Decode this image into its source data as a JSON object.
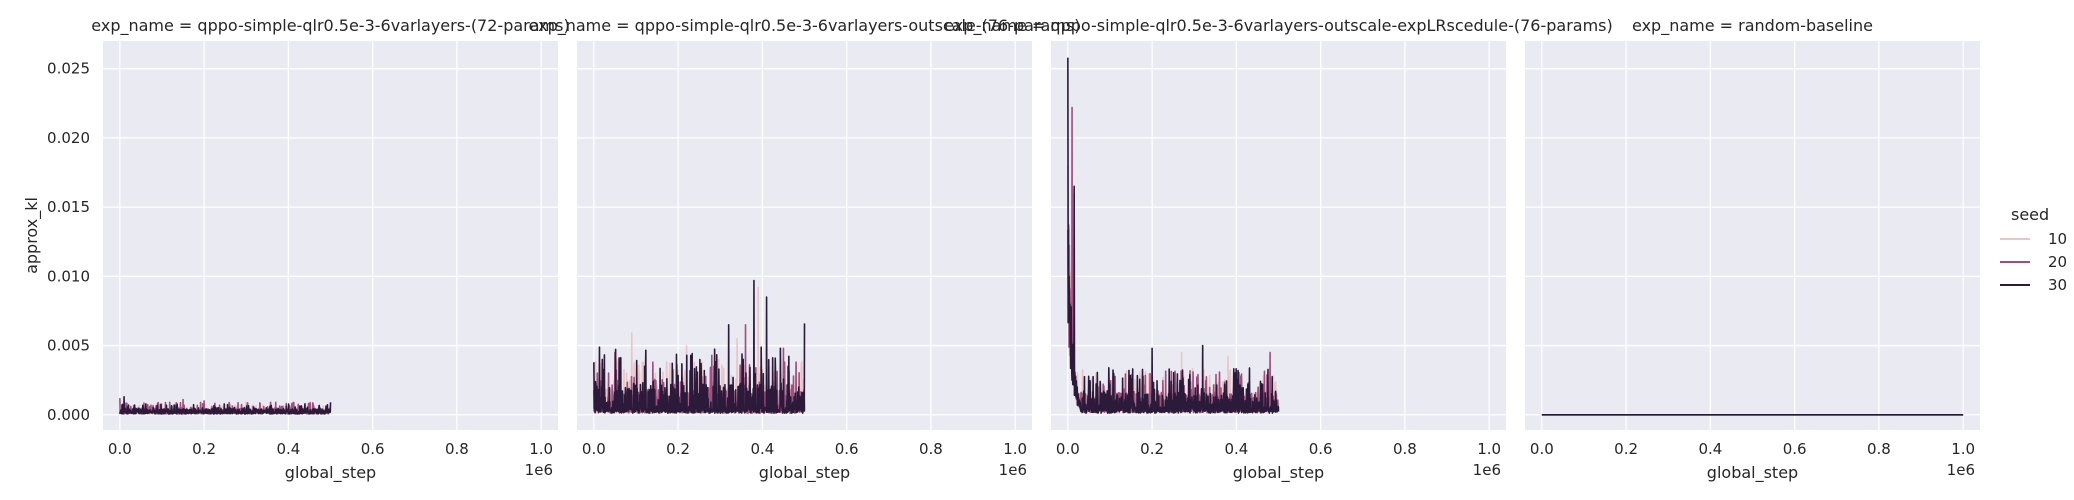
{
  "figure": {
    "legend": {
      "title": "seed",
      "placement": "right-center"
    }
  },
  "chart_data": [
    {
      "type": "line",
      "title": "exp_name = qppo-simple-qlr0.5e-3-6varlayers-(72-params)",
      "xlabel": "global_step",
      "ylabel": "approx_kl",
      "x_offset_label": "1e6",
      "xlim": [
        -0.04,
        1.04
      ],
      "ylim": [
        -0.0011,
        0.027
      ],
      "xticks": [
        0.0,
        0.2,
        0.4,
        0.6,
        0.8,
        1.0
      ],
      "xtick_labels": [
        "0.0",
        "0.2",
        "0.4",
        "0.6",
        "0.8",
        "1.0"
      ],
      "yticks": [
        0.0,
        0.005,
        0.01,
        0.015,
        0.02,
        0.025
      ],
      "ytick_labels": [
        "0.000",
        "0.005",
        "0.010",
        "0.015",
        "0.020",
        "0.025"
      ],
      "grid": true,
      "x_range": [
        0.0,
        0.5
      ],
      "series": [
        {
          "name": "10",
          "color": "#ebc5c3",
          "typical": 0.0002,
          "amplitude": 0.0005,
          "peaks": [
            [
              0.1,
              0.0008
            ],
            [
              0.3,
              0.0009
            ]
          ]
        },
        {
          "name": "20",
          "color": "#a0507e",
          "typical": 0.0002,
          "amplitude": 0.0007,
          "peaks": [
            [
              0.0,
              0.0012
            ],
            [
              0.15,
              0.0011
            ],
            [
              0.2,
              0.001
            ],
            [
              0.37,
              0.0009
            ]
          ]
        },
        {
          "name": "30",
          "color": "#2b1a3a",
          "typical": 0.0002,
          "amplitude": 0.0006,
          "peaks": [
            [
              0.01,
              0.0013
            ],
            [
              0.5,
              0.0009
            ]
          ]
        }
      ]
    },
    {
      "type": "line",
      "title": "exp_name = qppo-simple-qlr0.5e-3-6varlayers-outscale-(76-params)",
      "xlabel": "global_step",
      "ylabel": "",
      "x_offset_label": "1e6",
      "xlim": [
        -0.04,
        1.04
      ],
      "ylim": [
        -0.0011,
        0.027
      ],
      "xticks": [
        0.0,
        0.2,
        0.4,
        0.6,
        0.8,
        1.0
      ],
      "xtick_labels": [
        "0.0",
        "0.2",
        "0.4",
        "0.6",
        "0.8",
        "1.0"
      ],
      "yticks": [
        0.0,
        0.005,
        0.01,
        0.015,
        0.02,
        0.025
      ],
      "ytick_labels": [
        "",
        "",
        "",
        "",
        "",
        ""
      ],
      "grid": true,
      "x_range": [
        0.0,
        0.5
      ],
      "series": [
        {
          "name": "10",
          "color": "#ebc5c3",
          "typical": 0.0005,
          "amplitude": 0.0035,
          "peaks": [
            [
              0.09,
              0.0059
            ],
            [
              0.22,
              0.005
            ],
            [
              0.34,
              0.0055
            ],
            [
              0.39,
              0.0092
            ]
          ]
        },
        {
          "name": "20",
          "color": "#a0507e",
          "typical": 0.0004,
          "amplitude": 0.0035,
          "peaks": [
            [
              0.05,
              0.0045
            ],
            [
              0.28,
              0.0043
            ],
            [
              0.36,
              0.0065
            ],
            [
              0.45,
              0.0048
            ]
          ]
        },
        {
          "name": "30",
          "color": "#2b1a3a",
          "typical": 0.0004,
          "amplitude": 0.0045,
          "peaks": [
            [
              0.01,
              0.0018
            ],
            [
              0.32,
              0.0065
            ],
            [
              0.38,
              0.0097
            ],
            [
              0.41,
              0.0085
            ],
            [
              0.5,
              0.0066
            ]
          ]
        }
      ]
    },
    {
      "type": "line",
      "title": "exp_name = qppo-simple-qlr0.5e-3-6varlayers-outscale-expLRscedule-(76-params)",
      "xlabel": "global_step",
      "ylabel": "",
      "x_offset_label": "1e6",
      "xlim": [
        -0.04,
        1.04
      ],
      "ylim": [
        -0.0011,
        0.027
      ],
      "xticks": [
        0.0,
        0.2,
        0.4,
        0.6,
        0.8,
        1.0
      ],
      "xtick_labels": [
        "0.0",
        "0.2",
        "0.4",
        "0.6",
        "0.8",
        "1.0"
      ],
      "yticks": [
        0.0,
        0.005,
        0.01,
        0.015,
        0.02,
        0.025
      ],
      "ytick_labels": [
        "",
        "",
        "",
        "",
        "",
        ""
      ],
      "grid": true,
      "x_range": [
        0.0,
        0.5
      ],
      "series": [
        {
          "name": "10",
          "color": "#ebc5c3",
          "typical": 0.0005,
          "amplitude": 0.0028,
          "peaks": [
            [
              0.0,
              0.018
            ],
            [
              0.012,
              0.012
            ],
            [
              0.27,
              0.0045
            ],
            [
              0.38,
              0.0042
            ]
          ],
          "initial_spike": true
        },
        {
          "name": "20",
          "color": "#a0507e",
          "typical": 0.0005,
          "amplitude": 0.0028,
          "peaks": [
            [
              0.01,
              0.0222
            ],
            [
              0.015,
              0.016
            ],
            [
              0.48,
              0.0045
            ]
          ],
          "initial_spike": true
        },
        {
          "name": "30",
          "color": "#2b1a3a",
          "typical": 0.0004,
          "amplitude": 0.003,
          "peaks": [
            [
              0.0,
              0.0258
            ],
            [
              0.015,
              0.0165
            ],
            [
              0.2,
              0.0048
            ],
            [
              0.32,
              0.005
            ]
          ],
          "initial_spike": true
        }
      ]
    },
    {
      "type": "line",
      "title": "exp_name = random-baseline",
      "xlabel": "global_step",
      "ylabel": "",
      "x_offset_label": "1e6",
      "xlim": [
        -0.04,
        1.04
      ],
      "ylim": [
        -0.0011,
        0.027
      ],
      "xticks": [
        0.0,
        0.2,
        0.4,
        0.6,
        0.8,
        1.0
      ],
      "xtick_labels": [
        "0.0",
        "0.2",
        "0.4",
        "0.6",
        "0.8",
        "1.0"
      ],
      "yticks": [
        0.0,
        0.005,
        0.01,
        0.015,
        0.02,
        0.025
      ],
      "ytick_labels": [
        "",
        "",
        "",
        "",
        "",
        ""
      ],
      "grid": true,
      "x_range": [
        0.0,
        1.0
      ],
      "series": [
        {
          "name": "10",
          "color": "#ebc5c3",
          "x": [
            0.0,
            1.0
          ],
          "y": [
            0.0,
            0.0
          ]
        },
        {
          "name": "20",
          "color": "#a0507e",
          "x": [
            0.0,
            1.0
          ],
          "y": [
            0.0,
            0.0
          ]
        },
        {
          "name": "30",
          "color": "#2b1a3a",
          "x": [
            0.0,
            1.0
          ],
          "y": [
            0.0,
            0.0
          ]
        }
      ]
    }
  ],
  "colors": {
    "panel_bg": "#eaeaf2",
    "grid": "#ffffff",
    "text": "#262626"
  }
}
